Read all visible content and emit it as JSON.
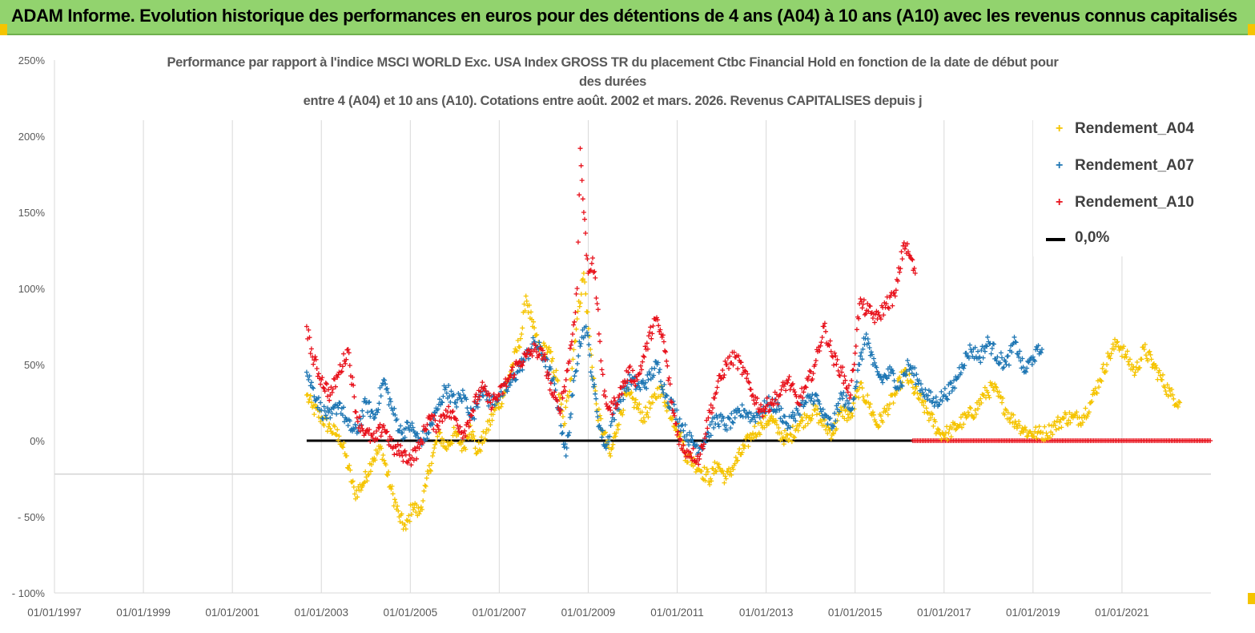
{
  "banner": {
    "title": "ADAM Informe. Evolution historique des performances en euros pour des détentions de 4 ans (A04) à 10 ans (A10) avec les revenus connus capitalisés"
  },
  "chart_data": {
    "type": "scatter",
    "title_lines": [
      "Performance par rapport à l'indice MSCI WORLD Exc. USA Index GROSS TR  du placement Ctbc Financial Hold  en fonction de la date de début pour",
      "des durées",
      "entre 4 (A04) et 10 ans (A10). Cotations entre août. 2002 et mars. 2026. Revenus CAPITALISES depuis j"
    ],
    "x_ticks": [
      "01/01/1997",
      "01/01/1999",
      "01/01/2001",
      "01/01/2003",
      "01/01/2005",
      "01/01/2007",
      "01/01/2009",
      "01/01/2011",
      "01/01/2013",
      "01/01/2015",
      "01/01/2017",
      "01/01/2019",
      "01/01/2021"
    ],
    "xlim": [
      1997.0,
      2023.0
    ],
    "y_ticks": [
      "250%",
      "200%",
      "150%",
      "100%",
      "50%",
      "0%",
      "- 50%",
      "- 100%"
    ],
    "ylim": [
      -100,
      250
    ],
    "legend_position": "top-right",
    "series": [
      {
        "name": "Rendement_A04",
        "color": "#f5c400",
        "marker": "+",
        "points": [
          [
            2002.67,
            30
          ],
          [
            2002.8,
            22
          ],
          [
            2003.0,
            15
          ],
          [
            2003.2,
            8
          ],
          [
            2003.4,
            3
          ],
          [
            2003.55,
            -10
          ],
          [
            2003.75,
            -35
          ],
          [
            2003.95,
            -28
          ],
          [
            2004.15,
            -12
          ],
          [
            2004.35,
            -5
          ],
          [
            2004.55,
            -30
          ],
          [
            2004.75,
            -50
          ],
          [
            2004.9,
            -58
          ],
          [
            2005.05,
            -42
          ],
          [
            2005.2,
            -48
          ],
          [
            2005.35,
            -30
          ],
          [
            2005.5,
            -10
          ],
          [
            2005.65,
            5
          ],
          [
            2005.8,
            -5
          ],
          [
            2006.0,
            5
          ],
          [
            2006.2,
            -5
          ],
          [
            2006.35,
            10
          ],
          [
            2006.5,
            -8
          ],
          [
            2006.7,
            5
          ],
          [
            2006.9,
            20
          ],
          [
            2007.1,
            30
          ],
          [
            2007.3,
            50
          ],
          [
            2007.5,
            70
          ],
          [
            2007.6,
            95
          ],
          [
            2007.75,
            75
          ],
          [
            2007.9,
            60
          ],
          [
            2008.1,
            60
          ],
          [
            2008.3,
            40
          ],
          [
            2008.45,
            10
          ],
          [
            2008.6,
            40
          ],
          [
            2008.75,
            80
          ],
          [
            2008.9,
            110
          ],
          [
            2009.05,
            60
          ],
          [
            2009.2,
            20
          ],
          [
            2009.35,
            5
          ],
          [
            2009.5,
            -10
          ],
          [
            2009.65,
            10
          ],
          [
            2009.85,
            30
          ],
          [
            2010.05,
            25
          ],
          [
            2010.25,
            15
          ],
          [
            2010.45,
            25
          ],
          [
            2010.6,
            35
          ],
          [
            2010.75,
            25
          ],
          [
            2010.9,
            15
          ],
          [
            2011.05,
            5
          ],
          [
            2011.2,
            -10
          ],
          [
            2011.4,
            -15
          ],
          [
            2011.55,
            -20
          ],
          [
            2011.75,
            -25
          ],
          [
            2011.9,
            -15
          ],
          [
            2012.1,
            -25
          ],
          [
            2012.3,
            -15
          ],
          [
            2012.5,
            -5
          ],
          [
            2012.7,
            5
          ],
          [
            2012.9,
            10
          ],
          [
            2013.1,
            15
          ],
          [
            2013.3,
            5
          ],
          [
            2013.5,
            0
          ],
          [
            2013.7,
            10
          ],
          [
            2013.9,
            15
          ],
          [
            2014.1,
            20
          ],
          [
            2014.3,
            10
          ],
          [
            2014.5,
            5
          ],
          [
            2014.7,
            20
          ],
          [
            2014.9,
            15
          ],
          [
            2015.1,
            35
          ],
          [
            2015.3,
            25
          ],
          [
            2015.5,
            10
          ],
          [
            2015.7,
            20
          ],
          [
            2015.9,
            30
          ],
          [
            2016.1,
            45
          ],
          [
            2016.3,
            35
          ],
          [
            2016.5,
            25
          ],
          [
            2016.7,
            15
          ],
          [
            2016.9,
            5
          ],
          [
            2017.1,
            5
          ],
          [
            2017.3,
            10
          ],
          [
            2017.5,
            15
          ],
          [
            2017.7,
            20
          ],
          [
            2017.9,
            30
          ],
          [
            2018.1,
            35
          ],
          [
            2018.3,
            25
          ],
          [
            2018.5,
            15
          ],
          [
            2018.7,
            10
          ],
          [
            2018.9,
            5
          ],
          [
            2019.1,
            5
          ],
          [
            2019.3,
            5
          ],
          [
            2019.5,
            10
          ],
          [
            2019.7,
            15
          ],
          [
            2019.9,
            15
          ],
          [
            2020.1,
            15
          ],
          [
            2020.3,
            25
          ],
          [
            2020.5,
            40
          ],
          [
            2020.7,
            55
          ],
          [
            2020.9,
            65
          ],
          [
            2021.1,
            55
          ],
          [
            2021.3,
            45
          ],
          [
            2021.5,
            60
          ],
          [
            2021.7,
            50
          ],
          [
            2021.9,
            40
          ],
          [
            2022.1,
            30
          ],
          [
            2022.3,
            25
          ]
        ]
      },
      {
        "name": "Rendement_A07",
        "color": "#1f77b4",
        "marker": "+",
        "points": [
          [
            2002.67,
            45
          ],
          [
            2002.8,
            35
          ],
          [
            2003.0,
            20
          ],
          [
            2003.2,
            15
          ],
          [
            2003.4,
            25
          ],
          [
            2003.6,
            10
          ],
          [
            2003.8,
            5
          ],
          [
            2004.0,
            25
          ],
          [
            2004.2,
            15
          ],
          [
            2004.4,
            40
          ],
          [
            2004.6,
            20
          ],
          [
            2004.8,
            5
          ],
          [
            2005.0,
            10
          ],
          [
            2005.2,
            0
          ],
          [
            2005.4,
            5
          ],
          [
            2005.6,
            20
          ],
          [
            2005.8,
            35
          ],
          [
            2006.0,
            25
          ],
          [
            2006.2,
            30
          ],
          [
            2006.4,
            15
          ],
          [
            2006.6,
            35
          ],
          [
            2006.8,
            25
          ],
          [
            2007.0,
            30
          ],
          [
            2007.2,
            35
          ],
          [
            2007.4,
            45
          ],
          [
            2007.6,
            55
          ],
          [
            2007.8,
            65
          ],
          [
            2008.0,
            55
          ],
          [
            2008.2,
            40
          ],
          [
            2008.35,
            20
          ],
          [
            2008.5,
            -10
          ],
          [
            2008.65,
            30
          ],
          [
            2008.8,
            65
          ],
          [
            2008.95,
            75
          ],
          [
            2009.1,
            40
          ],
          [
            2009.25,
            10
          ],
          [
            2009.4,
            -5
          ],
          [
            2009.55,
            15
          ],
          [
            2009.75,
            30
          ],
          [
            2009.95,
            40
          ],
          [
            2010.15,
            35
          ],
          [
            2010.35,
            40
          ],
          [
            2010.55,
            50
          ],
          [
            2010.75,
            30
          ],
          [
            2010.95,
            20
          ],
          [
            2011.1,
            10
          ],
          [
            2011.3,
            0
          ],
          [
            2011.5,
            -5
          ],
          [
            2011.7,
            5
          ],
          [
            2011.9,
            15
          ],
          [
            2012.1,
            10
          ],
          [
            2012.3,
            15
          ],
          [
            2012.5,
            20
          ],
          [
            2012.7,
            15
          ],
          [
            2012.9,
            20
          ],
          [
            2013.1,
            25
          ],
          [
            2013.3,
            20
          ],
          [
            2013.5,
            10
          ],
          [
            2013.7,
            20
          ],
          [
            2013.9,
            25
          ],
          [
            2014.1,
            30
          ],
          [
            2014.3,
            15
          ],
          [
            2014.5,
            10
          ],
          [
            2014.7,
            30
          ],
          [
            2014.9,
            20
          ],
          [
            2015.1,
            50
          ],
          [
            2015.25,
            70
          ],
          [
            2015.4,
            50
          ],
          [
            2015.6,
            40
          ],
          [
            2015.8,
            45
          ],
          [
            2016.0,
            35
          ],
          [
            2016.2,
            50
          ],
          [
            2016.4,
            40
          ],
          [
            2016.6,
            30
          ],
          [
            2016.8,
            25
          ],
          [
            2017.0,
            30
          ],
          [
            2017.2,
            35
          ],
          [
            2017.4,
            50
          ],
          [
            2017.6,
            60
          ],
          [
            2017.8,
            55
          ],
          [
            2018.0,
            65
          ],
          [
            2018.2,
            55
          ],
          [
            2018.4,
            50
          ],
          [
            2018.6,
            65
          ],
          [
            2018.8,
            45
          ],
          [
            2019.0,
            55
          ],
          [
            2019.2,
            60
          ]
        ]
      },
      {
        "name": "Rendement_A10",
        "color": "#e8121c",
        "marker": "+",
        "points": [
          [
            2002.67,
            75
          ],
          [
            2002.8,
            55
          ],
          [
            2003.0,
            40
          ],
          [
            2003.2,
            30
          ],
          [
            2003.4,
            45
          ],
          [
            2003.6,
            60
          ],
          [
            2003.8,
            15
          ],
          [
            2004.0,
            5
          ],
          [
            2004.2,
            0
          ],
          [
            2004.4,
            10
          ],
          [
            2004.6,
            -5
          ],
          [
            2004.8,
            -8
          ],
          [
            2005.0,
            -12
          ],
          [
            2005.2,
            -5
          ],
          [
            2005.4,
            15
          ],
          [
            2005.6,
            10
          ],
          [
            2005.8,
            20
          ],
          [
            2006.0,
            15
          ],
          [
            2006.2,
            5
          ],
          [
            2006.4,
            20
          ],
          [
            2006.6,
            35
          ],
          [
            2006.8,
            25
          ],
          [
            2007.0,
            30
          ],
          [
            2007.2,
            40
          ],
          [
            2007.4,
            50
          ],
          [
            2007.6,
            55
          ],
          [
            2007.8,
            60
          ],
          [
            2008.0,
            55
          ],
          [
            2008.2,
            30
          ],
          [
            2008.35,
            20
          ],
          [
            2008.5,
            40
          ],
          [
            2008.65,
            70
          ],
          [
            2008.75,
            100
          ],
          [
            2008.82,
            192
          ],
          [
            2008.9,
            150
          ],
          [
            2009.0,
            110
          ],
          [
            2009.1,
            120
          ],
          [
            2009.2,
            90
          ],
          [
            2009.35,
            30
          ],
          [
            2009.5,
            20
          ],
          [
            2009.7,
            30
          ],
          [
            2009.9,
            45
          ],
          [
            2010.1,
            40
          ],
          [
            2010.3,
            60
          ],
          [
            2010.5,
            80
          ],
          [
            2010.7,
            65
          ],
          [
            2010.9,
            20
          ],
          [
            2011.1,
            -5
          ],
          [
            2011.3,
            -8
          ],
          [
            2011.5,
            -12
          ],
          [
            2011.7,
            15
          ],
          [
            2011.9,
            35
          ],
          [
            2012.1,
            50
          ],
          [
            2012.3,
            55
          ],
          [
            2012.5,
            45
          ],
          [
            2012.7,
            30
          ],
          [
            2012.9,
            20
          ],
          [
            2013.1,
            25
          ],
          [
            2013.3,
            30
          ],
          [
            2013.5,
            40
          ],
          [
            2013.7,
            25
          ],
          [
            2013.9,
            35
          ],
          [
            2014.1,
            50
          ],
          [
            2014.3,
            75
          ],
          [
            2014.5,
            55
          ],
          [
            2014.7,
            45
          ],
          [
            2014.9,
            30
          ],
          [
            2015.1,
            90
          ],
          [
            2015.3,
            85
          ],
          [
            2015.5,
            80
          ],
          [
            2015.7,
            90
          ],
          [
            2015.9,
            95
          ],
          [
            2016.1,
            130
          ],
          [
            2016.25,
            120
          ],
          [
            2016.35,
            110
          ]
        ]
      }
    ],
    "zero_line": {
      "name": "0,0%",
      "color": "#000000",
      "from": 2002.67,
      "to": 2016.3
    },
    "red_zero_segment": {
      "from": 2016.3,
      "to": 2023.0,
      "value": 0
    }
  }
}
